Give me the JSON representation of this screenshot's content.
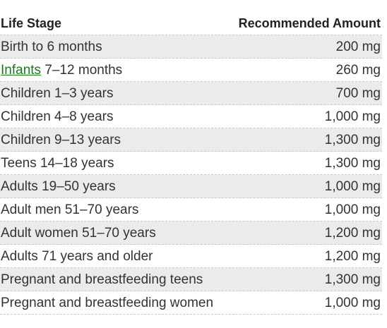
{
  "table": {
    "headers": {
      "stage": "Life Stage",
      "amount": "Recommended Amount"
    },
    "rows": [
      {
        "stage": "Birth to 6 months",
        "amount": "200 mg"
      },
      {
        "link": "Infants",
        "stage": " 7–12 months",
        "amount": "260 mg"
      },
      {
        "stage": "Children 1–3 years",
        "amount": "700 mg"
      },
      {
        "stage": "Children 4–8 years",
        "amount": "1,000 mg"
      },
      {
        "stage": "Children 9–13 years",
        "amount": "1,300 mg"
      },
      {
        "stage": "Teens 14–18 years",
        "amount": "1,300 mg"
      },
      {
        "stage": "Adults 19–50 years",
        "amount": "1,000 mg"
      },
      {
        "stage": "Adult men 51–70 years",
        "amount": "1,000 mg"
      },
      {
        "stage": "Adult women 51–70 years",
        "amount": "1,200 mg"
      },
      {
        "stage": "Adults 71 years and older",
        "amount": "1,200 mg"
      },
      {
        "stage": "Pregnant and breastfeeding teens",
        "amount": "1,300 mg"
      },
      {
        "stage": "Pregnant and breastfeeding women",
        "amount": "1,000 mg"
      }
    ]
  },
  "colors": {
    "link": "#1a7a1a",
    "shaded_row": "#ebebeb",
    "text": "#333333"
  }
}
